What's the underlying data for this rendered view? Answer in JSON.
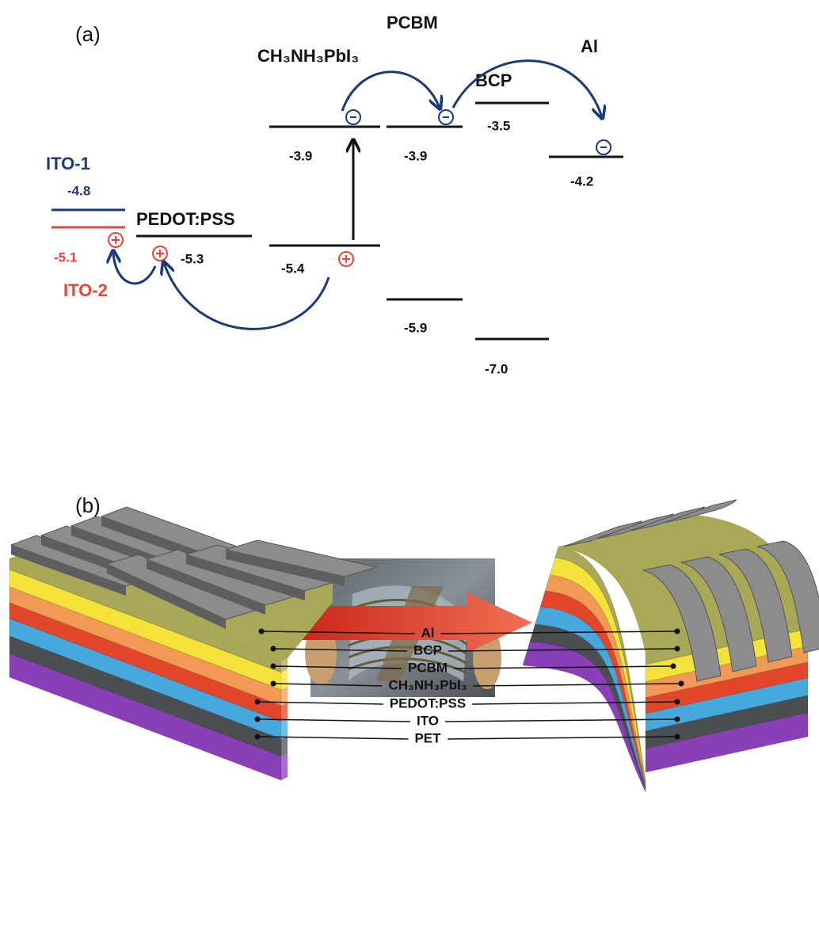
{
  "panel_a": {
    "label": "(a)",
    "materials": [
      {
        "name": "ITO-1",
        "levels": [
          "-4.8"
        ]
      },
      {
        "name": "ITO-2",
        "levels": [
          "-5.1"
        ]
      },
      {
        "name": "PEDOT:PSS",
        "levels": [
          "-5.3"
        ]
      },
      {
        "name": "CH₃NH₃PbI₃",
        "levels": [
          "-3.9",
          "-5.4"
        ]
      },
      {
        "name": "PCBM",
        "levels": [
          "-3.9",
          "-5.9"
        ]
      },
      {
        "name": "BCP",
        "levels": [
          "-3.5",
          "-7.0"
        ]
      },
      {
        "name": "Al",
        "levels": [
          "-4.2"
        ]
      }
    ]
  },
  "panel_b": {
    "label": "(b)",
    "layers": [
      "Al",
      "BCP",
      "PCBM",
      "CH₃NH₃PbI₃",
      "PEDOT:PSS",
      "ITO",
      "PET"
    ]
  }
}
